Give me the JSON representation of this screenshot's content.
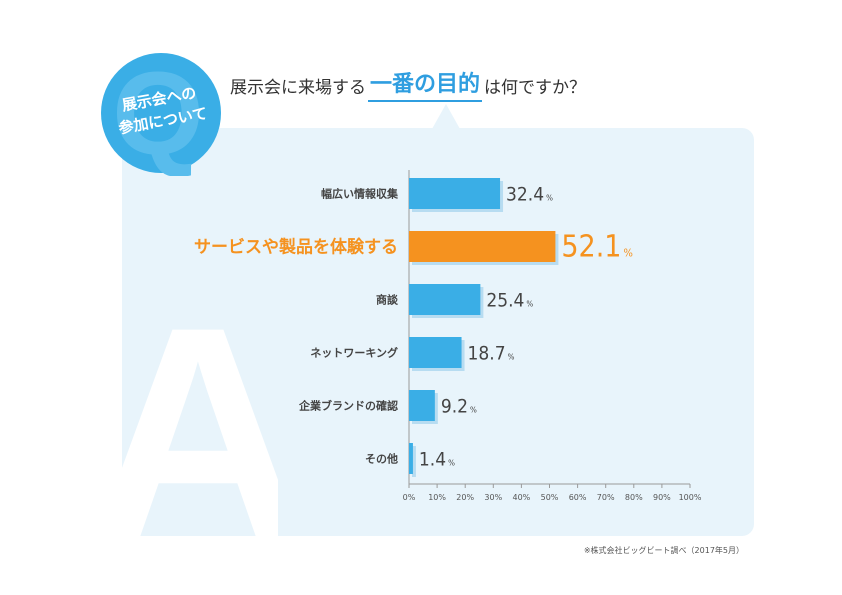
{
  "badge": {
    "letter": "Q",
    "line1": "展示会への",
    "line2": "参加について"
  },
  "question": {
    "before": "展示会に来場する",
    "highlight": "一番の目的",
    "after": "は何ですか？"
  },
  "answer_letter": "A",
  "source": "※株式会社ビッグビート調べ（2017年5月）",
  "colors": {
    "bar": "#3aaee6",
    "highlight": "#f5921f",
    "panel": "#e8f4fb",
    "badge": "#3aaee6",
    "value_text": "#444444"
  },
  "chart_data": {
    "type": "bar",
    "orientation": "horizontal",
    "title": "展示会に来場する一番の目的は何ですか？",
    "categories": [
      "幅広い情報収集",
      "サービスや製品を体験する",
      "商談",
      "ネットワーキング",
      "企業ブランドの確認",
      "その他"
    ],
    "values": [
      32.4,
      52.1,
      25.4,
      18.7,
      9.2,
      1.4
    ],
    "value_labels": [
      "32.4",
      "52.1",
      "25.4",
      "18.7",
      "9.2",
      "1.4"
    ],
    "unit": "%",
    "highlight_index": 1,
    "xlim": [
      0,
      100
    ],
    "xticks": [
      "0%",
      "10%",
      "20%",
      "30%",
      "40%",
      "50%",
      "60%",
      "70%",
      "80%",
      "90%",
      "100%"
    ],
    "xlabel": "",
    "ylabel": "",
    "grid": false
  }
}
